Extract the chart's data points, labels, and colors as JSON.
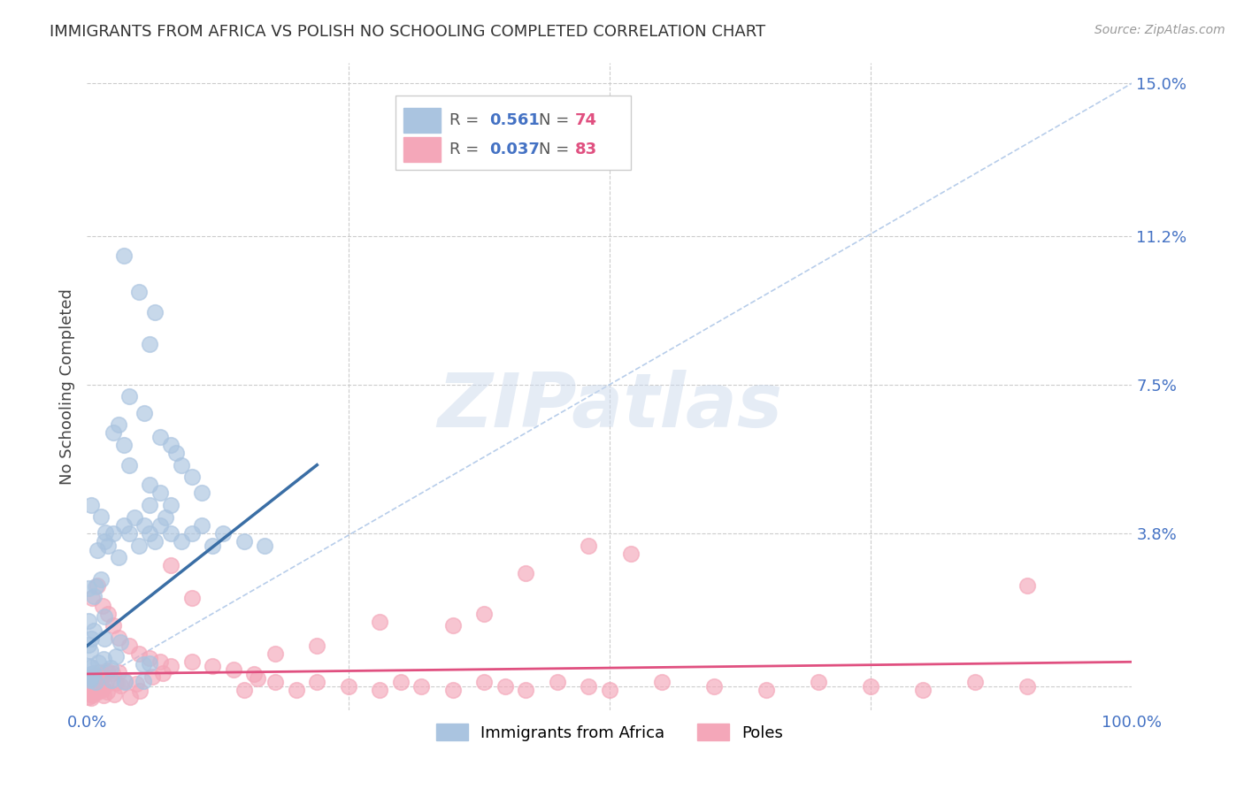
{
  "title": "IMMIGRANTS FROM AFRICA VS POLISH NO SCHOOLING COMPLETED CORRELATION CHART",
  "source": "Source: ZipAtlas.com",
  "ylabel": "No Schooling Completed",
  "xlabel": "",
  "xlim": [
    0,
    1.0
  ],
  "ylim": [
    -0.006,
    0.155
  ],
  "xticks": [
    0.0,
    0.25,
    0.5,
    0.75,
    1.0
  ],
  "xticklabels": [
    "0.0%",
    "",
    "",
    "",
    "100.0%"
  ],
  "ytick_positions": [
    0.0,
    0.038,
    0.075,
    0.112,
    0.15
  ],
  "ytick_labels": [
    "",
    "3.8%",
    "7.5%",
    "11.2%",
    "15.0%"
  ],
  "grid_color": "#cccccc",
  "background_color": "#ffffff",
  "watermark": "ZIPatlas",
  "africa_color": "#aac4e0",
  "africa_edge_color": "#7aafd0",
  "africa_line_color": "#3a6ea5",
  "poles_color": "#f4a7b9",
  "poles_edge_color": "#e080a0",
  "poles_line_color": "#e05080",
  "diagonal_color": "#b0c8e8",
  "legend_africa_r": "0.561",
  "legend_africa_n": "74",
  "legend_poles_r": "0.037",
  "legend_poles_n": "83",
  "legend_africa_label": "Immigrants from Africa",
  "legend_poles_label": "Poles"
}
